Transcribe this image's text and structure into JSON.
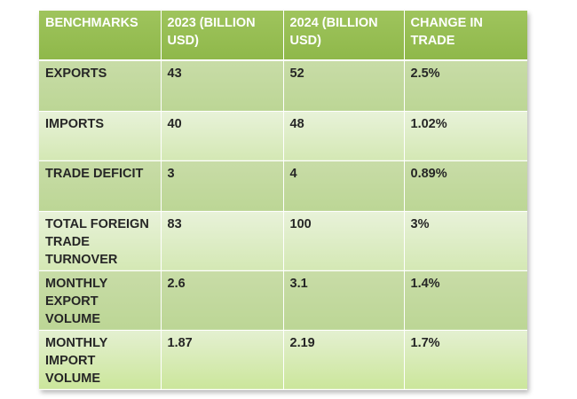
{
  "table": {
    "headers": [
      [
        "BENCHMARKS"
      ],
      [
        "2023 (BILLION",
        "USD)"
      ],
      [
        "2024 (BILLION",
        "USD)"
      ],
      [
        "CHANGE IN",
        "TRADE"
      ]
    ],
    "rows": [
      {
        "label": [
          "EXPORTS"
        ],
        "v2023": "43",
        "v2024": "52",
        "change": "2.5%"
      },
      {
        "label": [
          "IMPORTS"
        ],
        "v2023": "40",
        "v2024": "48",
        "change": "1.02%"
      },
      {
        "label": [
          "TRADE DEFICIT"
        ],
        "v2023": "3",
        "v2024": "4",
        "change": "0.89%"
      },
      {
        "label": [
          "TOTAL FOREIGN",
          "TRADE",
          "TURNOVER"
        ],
        "v2023": "83",
        "v2024": "100",
        "change": "3%"
      },
      {
        "label": [
          "MONTHLY",
          "EXPORT",
          "VOLUME"
        ],
        "v2023": "2.6",
        "v2024": "3.1",
        "change": "1.4%"
      },
      {
        "label": [
          "MONTHLY",
          "IMPORT",
          "VOLUME"
        ],
        "v2023": "1.87",
        "v2024": "2.19",
        "change": "1.7%"
      }
    ]
  },
  "colors": {
    "header_bg": "#9bc25a",
    "row_dark_bg": "#c4db9f",
    "row_light_bg": "#e2efd0",
    "header_text": "#ffffff",
    "body_text": "#262626"
  }
}
